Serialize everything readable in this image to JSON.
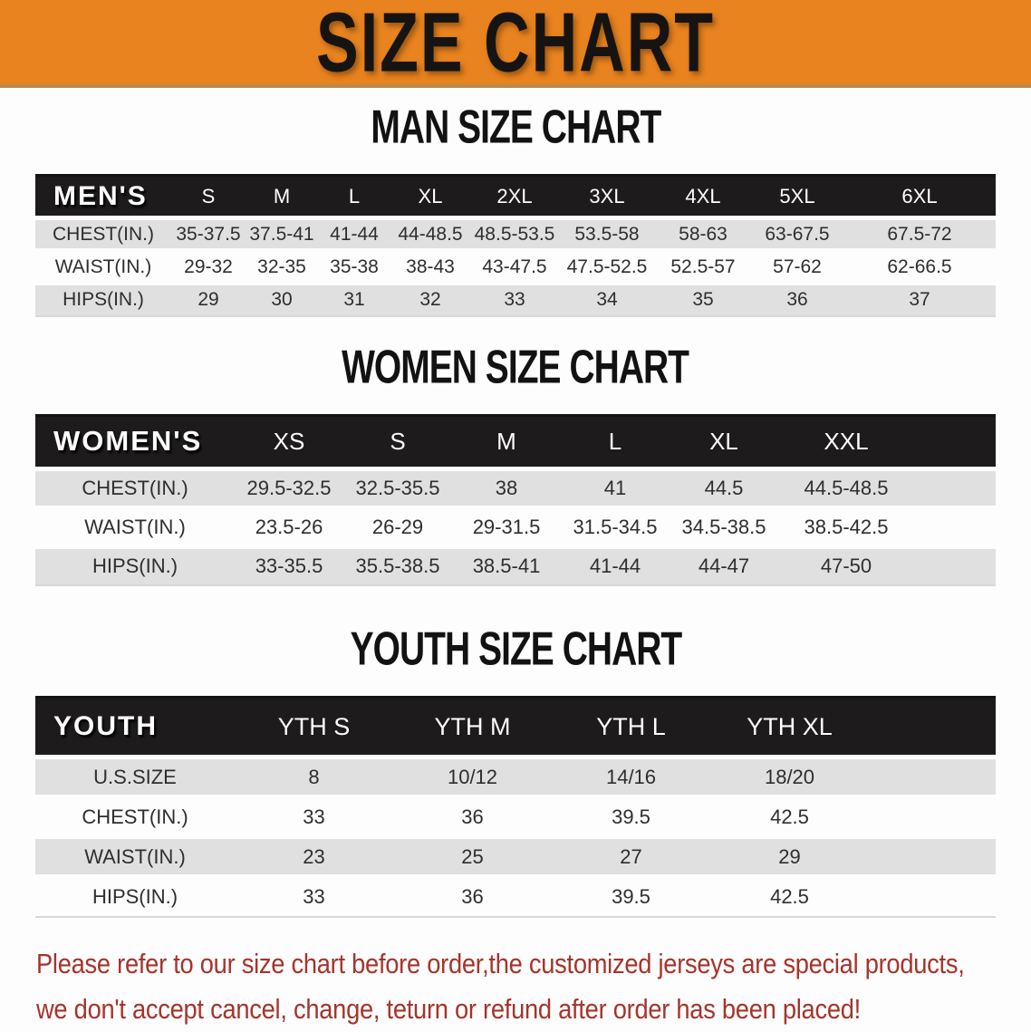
{
  "banner": {
    "title": "SIZE CHART"
  },
  "headings": {
    "men": "MAN SIZE CHART",
    "women": "WOMEN SIZE CHART",
    "youth": "YOUTH SIZE CHART"
  },
  "tables": {
    "men": {
      "header_label": "MEN'S",
      "columns": [
        "S",
        "M",
        "L",
        "XL",
        "2XL",
        "3XL",
        "4XL",
        "5XL",
        "6XL"
      ],
      "rows": [
        {
          "label": "CHEST(IN.)",
          "values": [
            "35-37.5",
            "37.5-41",
            "41-44",
            "44-48.5",
            "48.5-53.5",
            "53.5-58",
            "58-63",
            "63-67.5",
            "67.5-72"
          ]
        },
        {
          "label": "WAIST(IN.)",
          "values": [
            "29-32",
            "32-35",
            "35-38",
            "38-43",
            "43-47.5",
            "47.5-52.5",
            "52.5-57",
            "57-62",
            "62-66.5"
          ]
        },
        {
          "label": "HIPS(IN.)",
          "values": [
            "29",
            "30",
            "31",
            "32",
            "33",
            "34",
            "35",
            "36",
            "37"
          ]
        }
      ]
    },
    "women": {
      "header_label": "WOMEN'S",
      "columns": [
        "XS",
        "S",
        "M",
        "L",
        "XL",
        "XXL"
      ],
      "rows": [
        {
          "label": "CHEST(IN.)",
          "values": [
            "29.5-32.5",
            "32.5-35.5",
            "38",
            "41",
            "44.5",
            "44.5-48.5"
          ]
        },
        {
          "label": "WAIST(IN.)",
          "values": [
            "23.5-26",
            "26-29",
            "29-31.5",
            "31.5-34.5",
            "34.5-38.5",
            "38.5-42.5"
          ]
        },
        {
          "label": "HIPS(IN.)",
          "values": [
            "33-35.5",
            "35.5-38.5",
            "38.5-41",
            "41-44",
            "44-47",
            "47-50"
          ]
        }
      ]
    },
    "youth": {
      "header_label": "YOUTH",
      "columns": [
        "YTH S",
        "YTH M",
        "YTH L",
        "YTH XL"
      ],
      "rows": [
        {
          "label": "U.S.SIZE",
          "values": [
            "8",
            "10/12",
            "14/16",
            "18/20"
          ]
        },
        {
          "label": "CHEST(IN.)",
          "values": [
            "33",
            "36",
            "39.5",
            "42.5"
          ]
        },
        {
          "label": "WAIST(IN.)",
          "values": [
            "23",
            "25",
            "27",
            "29"
          ]
        },
        {
          "label": "HIPS(IN.)",
          "values": [
            "33",
            "36",
            "39.5",
            "42.5"
          ]
        }
      ]
    }
  },
  "note": {
    "line1": "Please refer to our size chart before order,the customized jerseys are special products,",
    "line2": "we don't accept cancel, change, teturn or refund after order has been placed!"
  },
  "colors": {
    "banner_bg": "#E8831F",
    "table_header_bg": "#1D1B1B",
    "row_stripe": "#E1E0E0",
    "note_text": "#A5342B"
  }
}
